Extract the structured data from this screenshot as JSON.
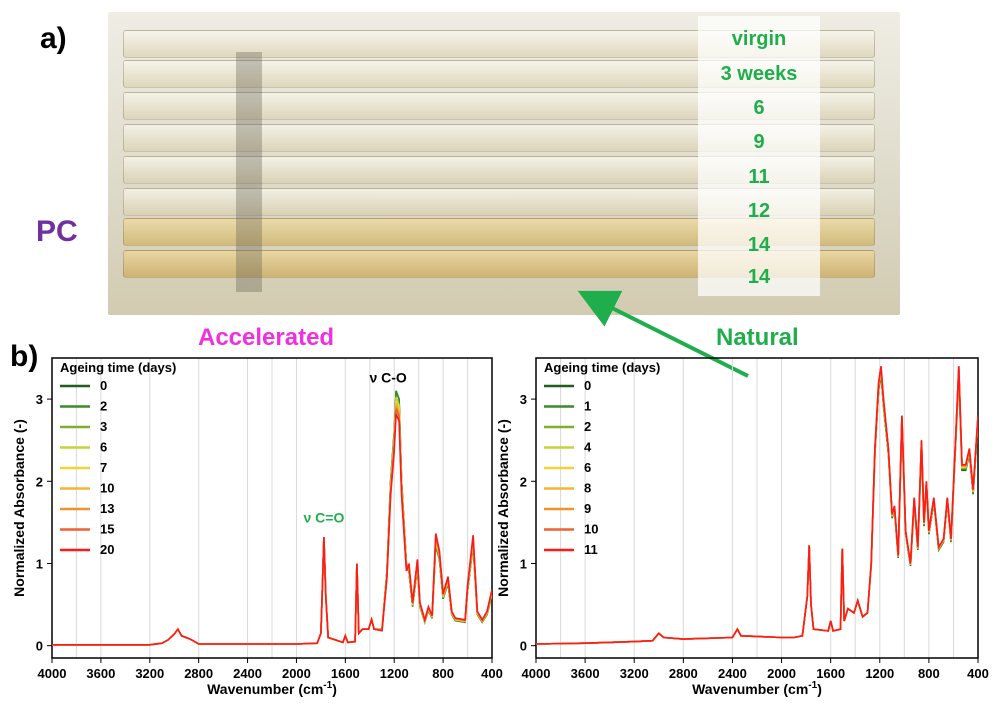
{
  "panel_a": {
    "label": "a)",
    "material": "PC",
    "sample_labels": [
      "virgin",
      "3 weeks",
      "6",
      "9",
      "11",
      "12",
      "14",
      "14"
    ]
  },
  "panel_b": {
    "label": "b)"
  },
  "conditions": {
    "accelerated": "Accelerated",
    "natural": "Natural"
  },
  "colors": {
    "photo_labels": "#1fae4b",
    "accelerated_title": "#f030e0",
    "pc_label": "#7030a0",
    "arrow": "#1fae4b"
  },
  "chart_data": [
    {
      "type": "line",
      "condition": "Accelerated",
      "xlabel": "Wavenumber (cm-1)",
      "ylabel": "Normalized Absorbance (-)",
      "xlim": [
        4000,
        400
      ],
      "ylim": [
        -0.15,
        3.5
      ],
      "x_ticks": [
        "4000",
        "3600",
        "3200",
        "2800",
        "2400",
        "2000",
        "1600",
        "1200",
        "800",
        "400"
      ],
      "y_ticks": [
        "0",
        "1",
        "2",
        "3"
      ],
      "legend_title": "Ageing time (days)",
      "legend_position": "top-left",
      "annotations": [
        {
          "text": "ν C=O",
          "x": 1775,
          "y": 1.5,
          "color": "#1fae4b"
        },
        {
          "text": "ν C-O",
          "x": 1250,
          "y": 3.2,
          "color": "#000000"
        }
      ],
      "series": [
        {
          "name": "0",
          "color": "#1e5f1e"
        },
        {
          "name": "2",
          "color": "#3a8c2a"
        },
        {
          "name": "3",
          "color": "#7fae2a"
        },
        {
          "name": "6",
          "color": "#c6d43a"
        },
        {
          "name": "7",
          "color": "#f2d23a"
        },
        {
          "name": "10",
          "color": "#f6b530"
        },
        {
          "name": "13",
          "color": "#f0922e"
        },
        {
          "name": "15",
          "color": "#ee6230"
        },
        {
          "name": "20",
          "color": "#ff1a1a"
        }
      ],
      "profile": [
        [
          4000,
          0.01
        ],
        [
          3500,
          0.01
        ],
        [
          3200,
          0.01
        ],
        [
          3100,
          0.03
        ],
        [
          3050,
          0.07
        ],
        [
          3000,
          0.14
        ],
        [
          2970,
          0.2
        ],
        [
          2940,
          0.12
        ],
        [
          2870,
          0.08
        ],
        [
          2800,
          0.02
        ],
        [
          2400,
          0.02
        ],
        [
          2000,
          0.02
        ],
        [
          1830,
          0.03
        ],
        [
          1800,
          0.15
        ],
        [
          1790,
          0.6
        ],
        [
          1775,
          1.32
        ],
        [
          1760,
          0.6
        ],
        [
          1740,
          0.1
        ],
        [
          1620,
          0.04
        ],
        [
          1600,
          0.12
        ],
        [
          1580,
          0.04
        ],
        [
          1520,
          0.05
        ],
        [
          1505,
          1.0
        ],
        [
          1490,
          0.15
        ],
        [
          1460,
          0.2
        ],
        [
          1410,
          0.2
        ],
        [
          1385,
          0.32
        ],
        [
          1365,
          0.2
        ],
        [
          1300,
          0.2
        ],
        [
          1260,
          0.9
        ],
        [
          1230,
          2.0
        ],
        [
          1200,
          2.6
        ],
        [
          1185,
          3.1
        ],
        [
          1160,
          3.0
        ],
        [
          1140,
          2.0
        ],
        [
          1100,
          1.0
        ],
        [
          1080,
          0.95
        ],
        [
          1050,
          0.5
        ],
        [
          1010,
          1.0
        ],
        [
          990,
          0.5
        ],
        [
          950,
          0.3
        ],
        [
          920,
          0.45
        ],
        [
          890,
          0.35
        ],
        [
          860,
          1.3
        ],
        [
          830,
          1.1
        ],
        [
          800,
          0.6
        ],
        [
          760,
          0.8
        ],
        [
          730,
          0.4
        ],
        [
          700,
          0.32
        ],
        [
          620,
          0.3
        ],
        [
          600,
          0.7
        ],
        [
          555,
          1.28
        ],
        [
          520,
          0.4
        ],
        [
          480,
          0.3
        ],
        [
          440,
          0.4
        ],
        [
          400,
          0.65
        ]
      ],
      "profile_peak_scale_last": [
        1.0,
        1.0,
        0.95,
        0.95,
        0.92,
        0.9,
        0.88,
        0.86,
        0.82
      ]
    },
    {
      "type": "line",
      "condition": "Natural",
      "xlabel": "Wavenumber (cm-1)",
      "ylabel": "Normalized Absorbance (-)",
      "xlim": [
        4000,
        400
      ],
      "ylim": [
        -0.15,
        3.5
      ],
      "x_ticks": [
        "4000",
        "3600",
        "3200",
        "2800",
        "2400",
        "2000",
        "1600",
        "1200",
        "800",
        "400"
      ],
      "y_ticks": [
        "0",
        "1",
        "2",
        "3"
      ],
      "legend_title": "Ageing time (days)",
      "legend_position": "top-left",
      "series": [
        {
          "name": "0",
          "color": "#1e5f1e"
        },
        {
          "name": "1",
          "color": "#3a8c2a"
        },
        {
          "name": "2",
          "color": "#7fae2a"
        },
        {
          "name": "4",
          "color": "#c6d43a"
        },
        {
          "name": "6",
          "color": "#f2d23a"
        },
        {
          "name": "8",
          "color": "#f6b530"
        },
        {
          "name": "9",
          "color": "#f0922e"
        },
        {
          "name": "10",
          "color": "#ee6230"
        },
        {
          "name": "11",
          "color": "#ff1a1a"
        }
      ],
      "profile": [
        [
          4000,
          0.02
        ],
        [
          3600,
          0.03
        ],
        [
          3200,
          0.05
        ],
        [
          3050,
          0.06
        ],
        [
          3000,
          0.15
        ],
        [
          2960,
          0.1
        ],
        [
          2800,
          0.08
        ],
        [
          2400,
          0.1
        ],
        [
          2360,
          0.2
        ],
        [
          2330,
          0.12
        ],
        [
          2000,
          0.1
        ],
        [
          1900,
          0.1
        ],
        [
          1830,
          0.12
        ],
        [
          1790,
          0.6
        ],
        [
          1775,
          1.22
        ],
        [
          1760,
          0.5
        ],
        [
          1740,
          0.2
        ],
        [
          1620,
          0.18
        ],
        [
          1600,
          0.3
        ],
        [
          1580,
          0.18
        ],
        [
          1520,
          0.2
        ],
        [
          1505,
          1.18
        ],
        [
          1490,
          0.3
        ],
        [
          1460,
          0.45
        ],
        [
          1410,
          0.4
        ],
        [
          1380,
          0.55
        ],
        [
          1340,
          0.35
        ],
        [
          1300,
          0.4
        ],
        [
          1270,
          1.0
        ],
        [
          1240,
          2.4
        ],
        [
          1210,
          3.2
        ],
        [
          1190,
          3.4
        ],
        [
          1170,
          3.0
        ],
        [
          1130,
          2.4
        ],
        [
          1100,
          1.6
        ],
        [
          1080,
          1.7
        ],
        [
          1050,
          1.1
        ],
        [
          1020,
          2.8
        ],
        [
          990,
          1.4
        ],
        [
          950,
          1.0
        ],
        [
          920,
          1.8
        ],
        [
          890,
          1.2
        ],
        [
          860,
          2.5
        ],
        [
          840,
          1.5
        ],
        [
          820,
          2.0
        ],
        [
          800,
          1.4
        ],
        [
          760,
          1.8
        ],
        [
          720,
          1.2
        ],
        [
          680,
          1.3
        ],
        [
          650,
          1.8
        ],
        [
          620,
          1.3
        ],
        [
          580,
          2.6
        ],
        [
          556,
          3.4
        ],
        [
          530,
          2.2
        ],
        [
          500,
          2.2
        ],
        [
          470,
          2.4
        ],
        [
          440,
          1.9
        ],
        [
          400,
          2.8
        ]
      ],
      "profile_spread": [
        0.8,
        0.84,
        0.88,
        0.9,
        0.92,
        0.95,
        0.97,
        0.99,
        1.0
      ]
    }
  ]
}
